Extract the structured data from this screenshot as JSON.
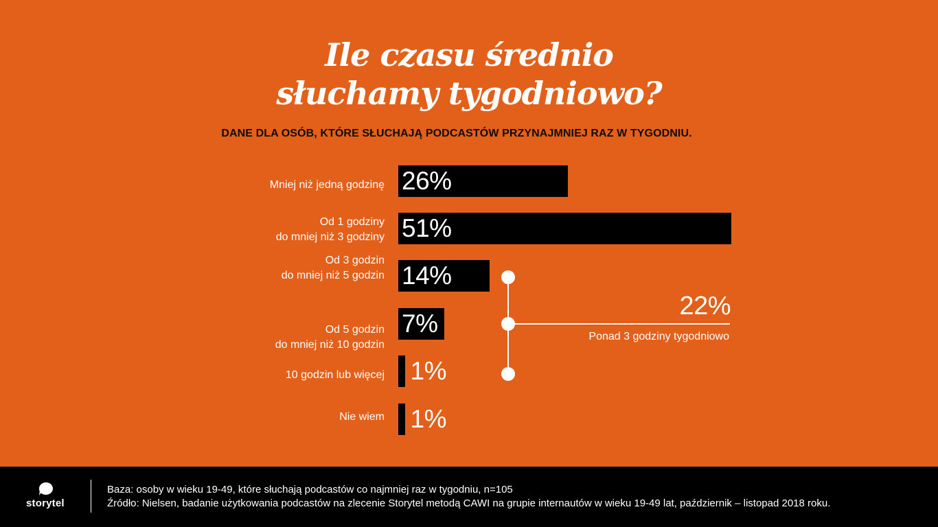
{
  "title_lines": [
    "Ile czasu średnio",
    "słuchamy tygodniowo?"
  ],
  "subtitle": "DANE DLA OSÓB, KTÓRE SŁUCHAJĄ PODCASTÓW PRZYNAJMNIEJ RAZ W TYGODNIU.",
  "chart_data": {
    "type": "bar",
    "orientation": "horizontal",
    "title": "Ile czasu średnio słuchamy tygodniowo?",
    "subtitle": "DANE DLA OSÓB, KTÓRE SŁUCHAJĄ PODCASTÓW PRZYNAJMNIEJ RAZ W TYGODNIU.",
    "categories": [
      [
        "Mniej niż jedną godzinę"
      ],
      [
        "Od 1 godziny",
        "do mniej niż 3 godziny"
      ],
      [
        "Od 3 godzin",
        "do mniej niż 5 godzin"
      ],
      [
        "Od 5 godzin",
        "do mniej niż 10 godzin"
      ],
      [
        "10 godzin lub więcej"
      ],
      [
        "Nie wiem"
      ]
    ],
    "values": [
      26,
      51,
      14,
      7,
      1,
      1
    ],
    "value_labels": [
      "26%",
      "51%",
      "14%",
      "7%",
      "1%",
      "1%"
    ],
    "unit": "%",
    "grid": false,
    "aggregate": {
      "covers_categories": [
        2,
        3,
        4
      ],
      "value": 22,
      "value_label": "22%",
      "label": "Ponad 3 godziny tygodniowo"
    }
  },
  "colors": {
    "background": "#E2601A",
    "bar": "#000000",
    "text": "#FFFFFF",
    "footer": "#000000"
  },
  "footer": {
    "logo_icon": "storytel-speech-bubble-icon",
    "logo_text": "storytel",
    "base": "Baza: osoby w wieku 19-49, które słuchają podcastów co najmniej raz w tygodniu, n=105",
    "source": "Źródło: Nielsen, badanie użytkowania podcastów na zlecenie Storytel metodą CAWI na grupie internautów w wieku 19-49 lat, październik – listopad 2018 roku."
  }
}
